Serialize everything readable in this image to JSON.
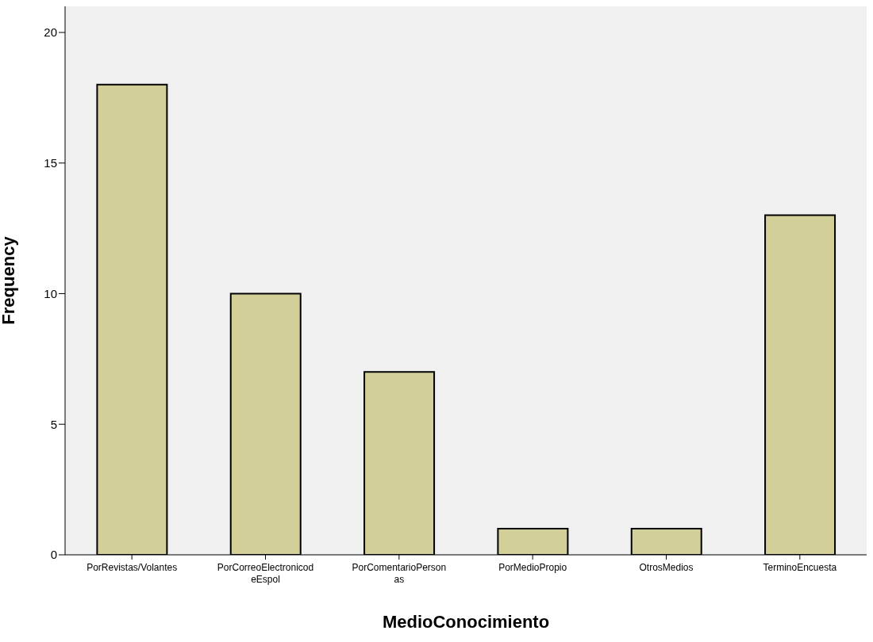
{
  "chart_data": {
    "type": "bar",
    "xlabel": "MedioConocimiento",
    "ylabel": "Frequency",
    "categories": [
      "PorRevistas/Volantes",
      "PorCorreoElectronicodeEspol",
      "PorComentarioPersonas",
      "PorMedioPropio",
      "OtrosMedios",
      "TerminoEncuesta"
    ],
    "values": [
      18,
      10,
      7,
      1,
      1,
      13
    ],
    "color": "#d3cf98",
    "ylim": [
      0,
      21
    ],
    "yticks": [
      0,
      5,
      10,
      15,
      20
    ],
    "grid": false
  }
}
